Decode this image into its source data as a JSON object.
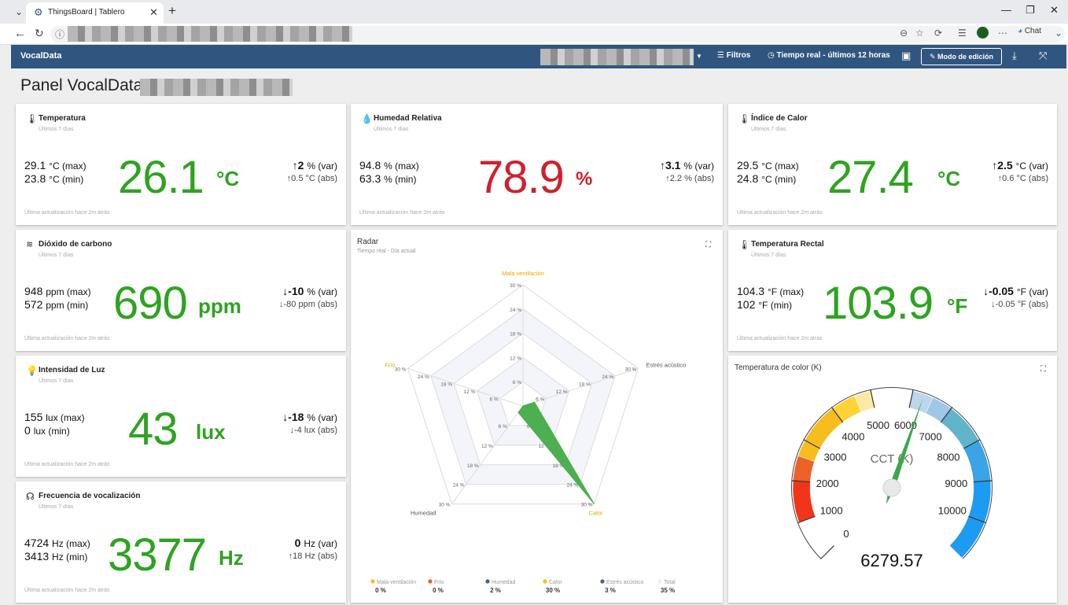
{
  "browser": {
    "tab_title": "ThingsBoard | Tablero",
    "new_tab": "+",
    "chat_label": "Chat"
  },
  "toolbar": {
    "brand": "VocalData",
    "filters": "Filtros",
    "time": "Tiempo real - últimos 12 horas",
    "edit_mode": "Modo de edición"
  },
  "page": {
    "title": "Panel VocalData"
  },
  "cards": {
    "temperatura": {
      "title": "Temperatura",
      "subtitle": "Últimos 7 días",
      "max_value": "29.1",
      "max_unit": "°C (max)",
      "min_value": "23.8",
      "min_unit": "°C (min)",
      "value": "26.1",
      "unit": "°C",
      "var_value": "2",
      "var_unit": "% (var)",
      "abs_value": "0.5",
      "abs_unit": "°C (abs)",
      "footer": "Última actualización hace 2m atrás"
    },
    "humedad": {
      "title": "Humedad Relativa",
      "subtitle": "Últimos 7 días",
      "max_value": "94.8",
      "max_unit": "% (max)",
      "min_value": "63.3",
      "min_unit": "% (min)",
      "value": "78.9",
      "unit": "%",
      "var_value": "3.1",
      "var_unit": "% (var)",
      "abs_value": "2.2",
      "abs_unit": "% (abs)",
      "footer": "Última actualización hace 2m atrás"
    },
    "calor": {
      "title": "Índice de Calor",
      "subtitle": "Últimos 7 días",
      "max_value": "29.5",
      "max_unit": "°C (max)",
      "min_value": "24.8",
      "min_unit": "°C (min)",
      "value": "27.4",
      "unit": "°C",
      "var_value": "2.5",
      "var_unit": "°C (var)",
      "abs_value": "0.6",
      "abs_unit": "°C (abs)",
      "footer": "Última actualización hace 2m atrás"
    },
    "co2": {
      "title": "Dióxido de carbono",
      "subtitle": "Últimos 7 días",
      "max_value": "948",
      "max_unit": "ppm (max)",
      "min_value": "572",
      "min_unit": "ppm (min)",
      "value": "690",
      "unit": "ppm",
      "var_value": "-10",
      "var_unit": "% (var)",
      "abs_value": "-80",
      "abs_unit": "ppm (abs)",
      "footer": "Última actualización hace 2m atrás"
    },
    "rectal": {
      "title": "Temperatura Rectal",
      "subtitle": "Últimos 7 días",
      "max_value": "104.3",
      "max_unit": "°F (max)",
      "min_value": "102",
      "min_unit": "°F (min)",
      "value": "103.9",
      "unit": "°F",
      "var_value": "-0.05",
      "var_unit": "°F (var)",
      "abs_value": "-0.05",
      "abs_unit": "°F (abs)",
      "footer": "Última actualización hace 2m atrás"
    },
    "luz": {
      "title": "Intensidad de Luz",
      "subtitle": "Últimos 7 días",
      "max_value": "155",
      "max_unit": "lux (max)",
      "min_value": "0",
      "min_unit": "lux (min)",
      "value": "43",
      "unit": "lux",
      "var_value": "-18",
      "var_unit": "% (var)",
      "abs_value": "-4",
      "abs_unit": "lux (abs)",
      "footer": "Última actualización hace 2m atrás"
    },
    "frecuencia": {
      "title": "Frecuencia de vocalización",
      "subtitle": "Últimos 7 días",
      "max_value": "4724",
      "max_unit": "Hz (max)",
      "min_value": "3413",
      "min_unit": "Hz (min)",
      "value": "3377",
      "unit": "Hz",
      "var_value": "0",
      "var_unit": "Hz (var)",
      "abs_value": "18",
      "abs_unit": "Hz (abs)",
      "footer": "Última actualización hace 2m atrás"
    }
  },
  "radar": {
    "title": "Radar",
    "subtitle": "Tiempo real - Día actual",
    "axes": [
      "Mala ventilación",
      "Estrés acústico",
      "Calor",
      "Humedad",
      "Frío"
    ],
    "axis_colors": [
      "#e8a400",
      "#555555",
      "#e8a400",
      "#555555",
      "#e8a400"
    ],
    "ticks": [
      "6 %",
      "12 %",
      "18 %",
      "24 %",
      "30 %"
    ],
    "max": 30,
    "area_values": [
      0,
      3,
      30,
      2,
      0
    ],
    "area_color": "#4caf50",
    "legend": [
      {
        "name": "Mala ventilación",
        "value": "0 %",
        "color": "#f5c400"
      },
      {
        "name": "Frío",
        "value": "0 %",
        "color": "#f05a1c"
      },
      {
        "name": "Humedad",
        "value": "2 %",
        "color": "#4a6280"
      },
      {
        "name": "Calor",
        "value": "30 %",
        "color": "#f5c400"
      },
      {
        "name": "Estrés acústico",
        "value": "3 %",
        "color": "#4a6280"
      },
      {
        "name": "Total",
        "value": "35 %",
        "color": "#eeeeee"
      }
    ]
  },
  "gauge": {
    "title": "Temperatura de color (K)",
    "label": "CCT (K)",
    "value": 6279.57,
    "value_text": "6279.57",
    "min": 0,
    "max": 11000,
    "ticks": [
      "0",
      "1000",
      "2000",
      "3000",
      "4000",
      "5000",
      "6000",
      "7000",
      "8000",
      "9000",
      "10000"
    ],
    "bands": [
      {
        "from": 0,
        "to": 1000,
        "color": "#ffffff"
      },
      {
        "from": 1000,
        "to": 2000,
        "color": "#f2351a"
      },
      {
        "from": 2000,
        "to": 2600,
        "color": "#ee6128"
      },
      {
        "from": 2600,
        "to": 4000,
        "color": "#f7bd1c"
      },
      {
        "from": 4000,
        "to": 4600,
        "color": "#fed334"
      },
      {
        "from": 4600,
        "to": 5000,
        "color": "#fde9a6"
      },
      {
        "from": 5000,
        "to": 6000,
        "color": "#ffffff"
      },
      {
        "from": 6000,
        "to": 6500,
        "color": "#bcd6ec"
      },
      {
        "from": 6500,
        "to": 7000,
        "color": "#a0c7e6"
      },
      {
        "from": 7000,
        "to": 8000,
        "color": "#60b4cc"
      },
      {
        "from": 8000,
        "to": 9000,
        "color": "#3aa4e6"
      },
      {
        "from": 9000,
        "to": 11000,
        "color": "#1c9bf0"
      }
    ],
    "needle_color": "#3aa84a"
  }
}
